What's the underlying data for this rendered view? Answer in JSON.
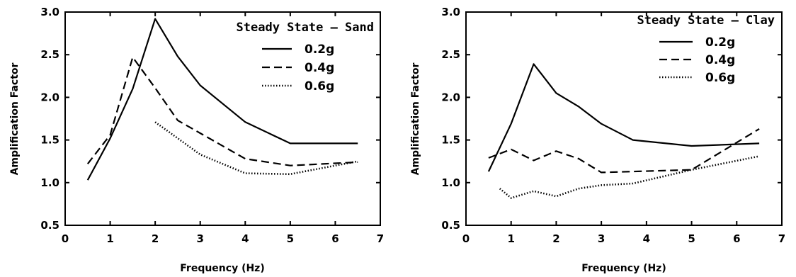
{
  "chart_data": [
    {
      "type": "line",
      "title": "Steady State – Sand",
      "xlabel": "Frequency (Hz)",
      "ylabel": "Amplification Factor",
      "xlim": [
        0,
        7
      ],
      "ylim": [
        0.5,
        3.0
      ],
      "xticks": [
        0,
        1,
        2,
        3,
        4,
        5,
        6,
        7
      ],
      "yticks": [
        0.5,
        1.0,
        1.5,
        2.0,
        2.5,
        3.0
      ],
      "xtick_labels": [
        "0",
        "1",
        "2",
        "3",
        "4",
        "5",
        "6",
        "7"
      ],
      "ytick_labels": [
        "0.5",
        "1.0",
        "1.5",
        "2.0",
        "2.5",
        "3.0"
      ],
      "grid": false,
      "legend_position": "top-right",
      "series": [
        {
          "name": "0.2g",
          "style": "solid",
          "x": [
            0.5,
            1.0,
            1.5,
            2.0,
            2.5,
            3.0,
            4.0,
            5.0,
            6.5
          ],
          "y": [
            1.03,
            1.52,
            2.1,
            2.92,
            2.48,
            2.14,
            1.71,
            1.46,
            1.46
          ]
        },
        {
          "name": "0.4g",
          "style": "dashed",
          "x": [
            0.5,
            1.0,
            1.5,
            2.0,
            2.5,
            3.0,
            4.0,
            5.0,
            6.5
          ],
          "y": [
            1.22,
            1.56,
            2.47,
            2.11,
            1.73,
            1.58,
            1.28,
            1.2,
            1.24
          ]
        },
        {
          "name": "0.6g",
          "style": "dotted",
          "x": [
            2.0,
            2.5,
            3.0,
            4.0,
            5.0,
            6.5
          ],
          "y": [
            1.71,
            1.52,
            1.33,
            1.11,
            1.1,
            1.25
          ]
        }
      ]
    },
    {
      "type": "line",
      "title": "Steady State – Clay",
      "xlabel": "Frequency (Hz)",
      "ylabel": "Amplification Factor",
      "xlim": [
        0,
        7
      ],
      "ylim": [
        0.5,
        3.0
      ],
      "xticks": [
        0,
        1,
        2,
        3,
        4,
        5,
        6,
        7
      ],
      "yticks": [
        0.5,
        1.0,
        1.5,
        2.0,
        2.5,
        3.0
      ],
      "xtick_labels": [
        "0",
        "1",
        "2",
        "3",
        "4",
        "5",
        "6",
        "7"
      ],
      "ytick_labels": [
        "0.5",
        "1.0",
        "1.5",
        "2.0",
        "2.5",
        "3.0"
      ],
      "grid": false,
      "legend_position": "top-right",
      "series": [
        {
          "name": "0.2g",
          "style": "solid",
          "x": [
            0.5,
            1.0,
            1.5,
            2.0,
            2.5,
            3.0,
            3.7,
            5.0,
            6.5
          ],
          "y": [
            1.13,
            1.69,
            2.39,
            2.05,
            1.89,
            1.69,
            1.5,
            1.43,
            1.46
          ]
        },
        {
          "name": "0.4g",
          "style": "dashed",
          "x": [
            0.5,
            1.0,
            1.5,
            2.0,
            2.5,
            3.0,
            3.7,
            5.0,
            6.5
          ],
          "y": [
            1.29,
            1.39,
            1.26,
            1.37,
            1.28,
            1.12,
            1.13,
            1.15,
            1.63
          ]
        },
        {
          "name": "0.6g",
          "style": "dotted",
          "x": [
            0.75,
            1.0,
            1.5,
            2.0,
            2.5,
            3.0,
            3.7,
            5.0,
            6.5
          ],
          "y": [
            0.93,
            0.82,
            0.9,
            0.84,
            0.93,
            0.97,
            0.99,
            1.15,
            1.31
          ]
        }
      ]
    }
  ]
}
